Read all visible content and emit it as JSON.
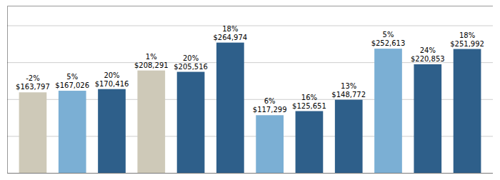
{
  "chart_data": {
    "type": "bar",
    "categories": [
      null,
      null,
      null,
      null,
      null,
      null,
      null,
      null,
      null,
      null,
      null,
      null
    ],
    "values": [
      163797,
      167026,
      170416,
      208291,
      205516,
      264974,
      117299,
      125651,
      148772,
      252613,
      220853,
      251992
    ],
    "value_labels": [
      "$163,797",
      "$167,026",
      "$170,416",
      "$208,291",
      "$205,516",
      "$264,974",
      "$117,299",
      "$125,651",
      "$148,772",
      "$252,613",
      "$220,853",
      "$251,992"
    ],
    "annotations": [
      "-2%",
      "5%",
      "20%",
      "1%",
      "20%",
      "18%",
      "6%",
      "16%",
      "13%",
      "5%",
      "24%",
      "18%"
    ],
    "colors": [
      "#cec9b8",
      "#7bafd4",
      "#2e5f8a",
      "#cec9b8",
      "#2e5f8a",
      "#2e5f8a",
      "#7bafd4",
      "#2e5f8a",
      "#2e5f8a",
      "#7bafd4",
      "#2e5f8a",
      "#2e5f8a"
    ],
    "ylim": [
      0,
      340000
    ],
    "yticks": [
      0,
      75000,
      150000,
      225000,
      300000
    ],
    "grid": true,
    "data_labels": true,
    "tick_labels": false
  }
}
